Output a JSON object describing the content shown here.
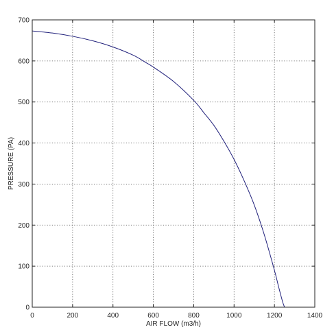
{
  "chart_data": {
    "type": "line",
    "title": "",
    "xlabel": "AIR FLOW (m3/h)",
    "ylabel": "PRESSURE (PA)",
    "xlim": [
      0,
      1400
    ],
    "ylim": [
      0,
      700
    ],
    "xticks": [
      0,
      200,
      400,
      600,
      800,
      1000,
      1200,
      1400
    ],
    "yticks": [
      0,
      100,
      200,
      300,
      400,
      500,
      600,
      700
    ],
    "grid": true,
    "series": [
      {
        "color": "#1f1f7a",
        "x": [
          0,
          100,
          200,
          300,
          400,
          500,
          560,
          600,
          700,
          800,
          850,
          900,
          950,
          1000,
          1050,
          1100,
          1150,
          1200,
          1220,
          1240,
          1250
        ],
        "y": [
          673,
          668,
          660,
          649,
          634,
          614,
          597,
          585,
          550,
          504,
          474,
          443,
          404,
          360,
          308,
          249,
          176,
          90,
          51,
          14,
          0
        ]
      }
    ]
  }
}
